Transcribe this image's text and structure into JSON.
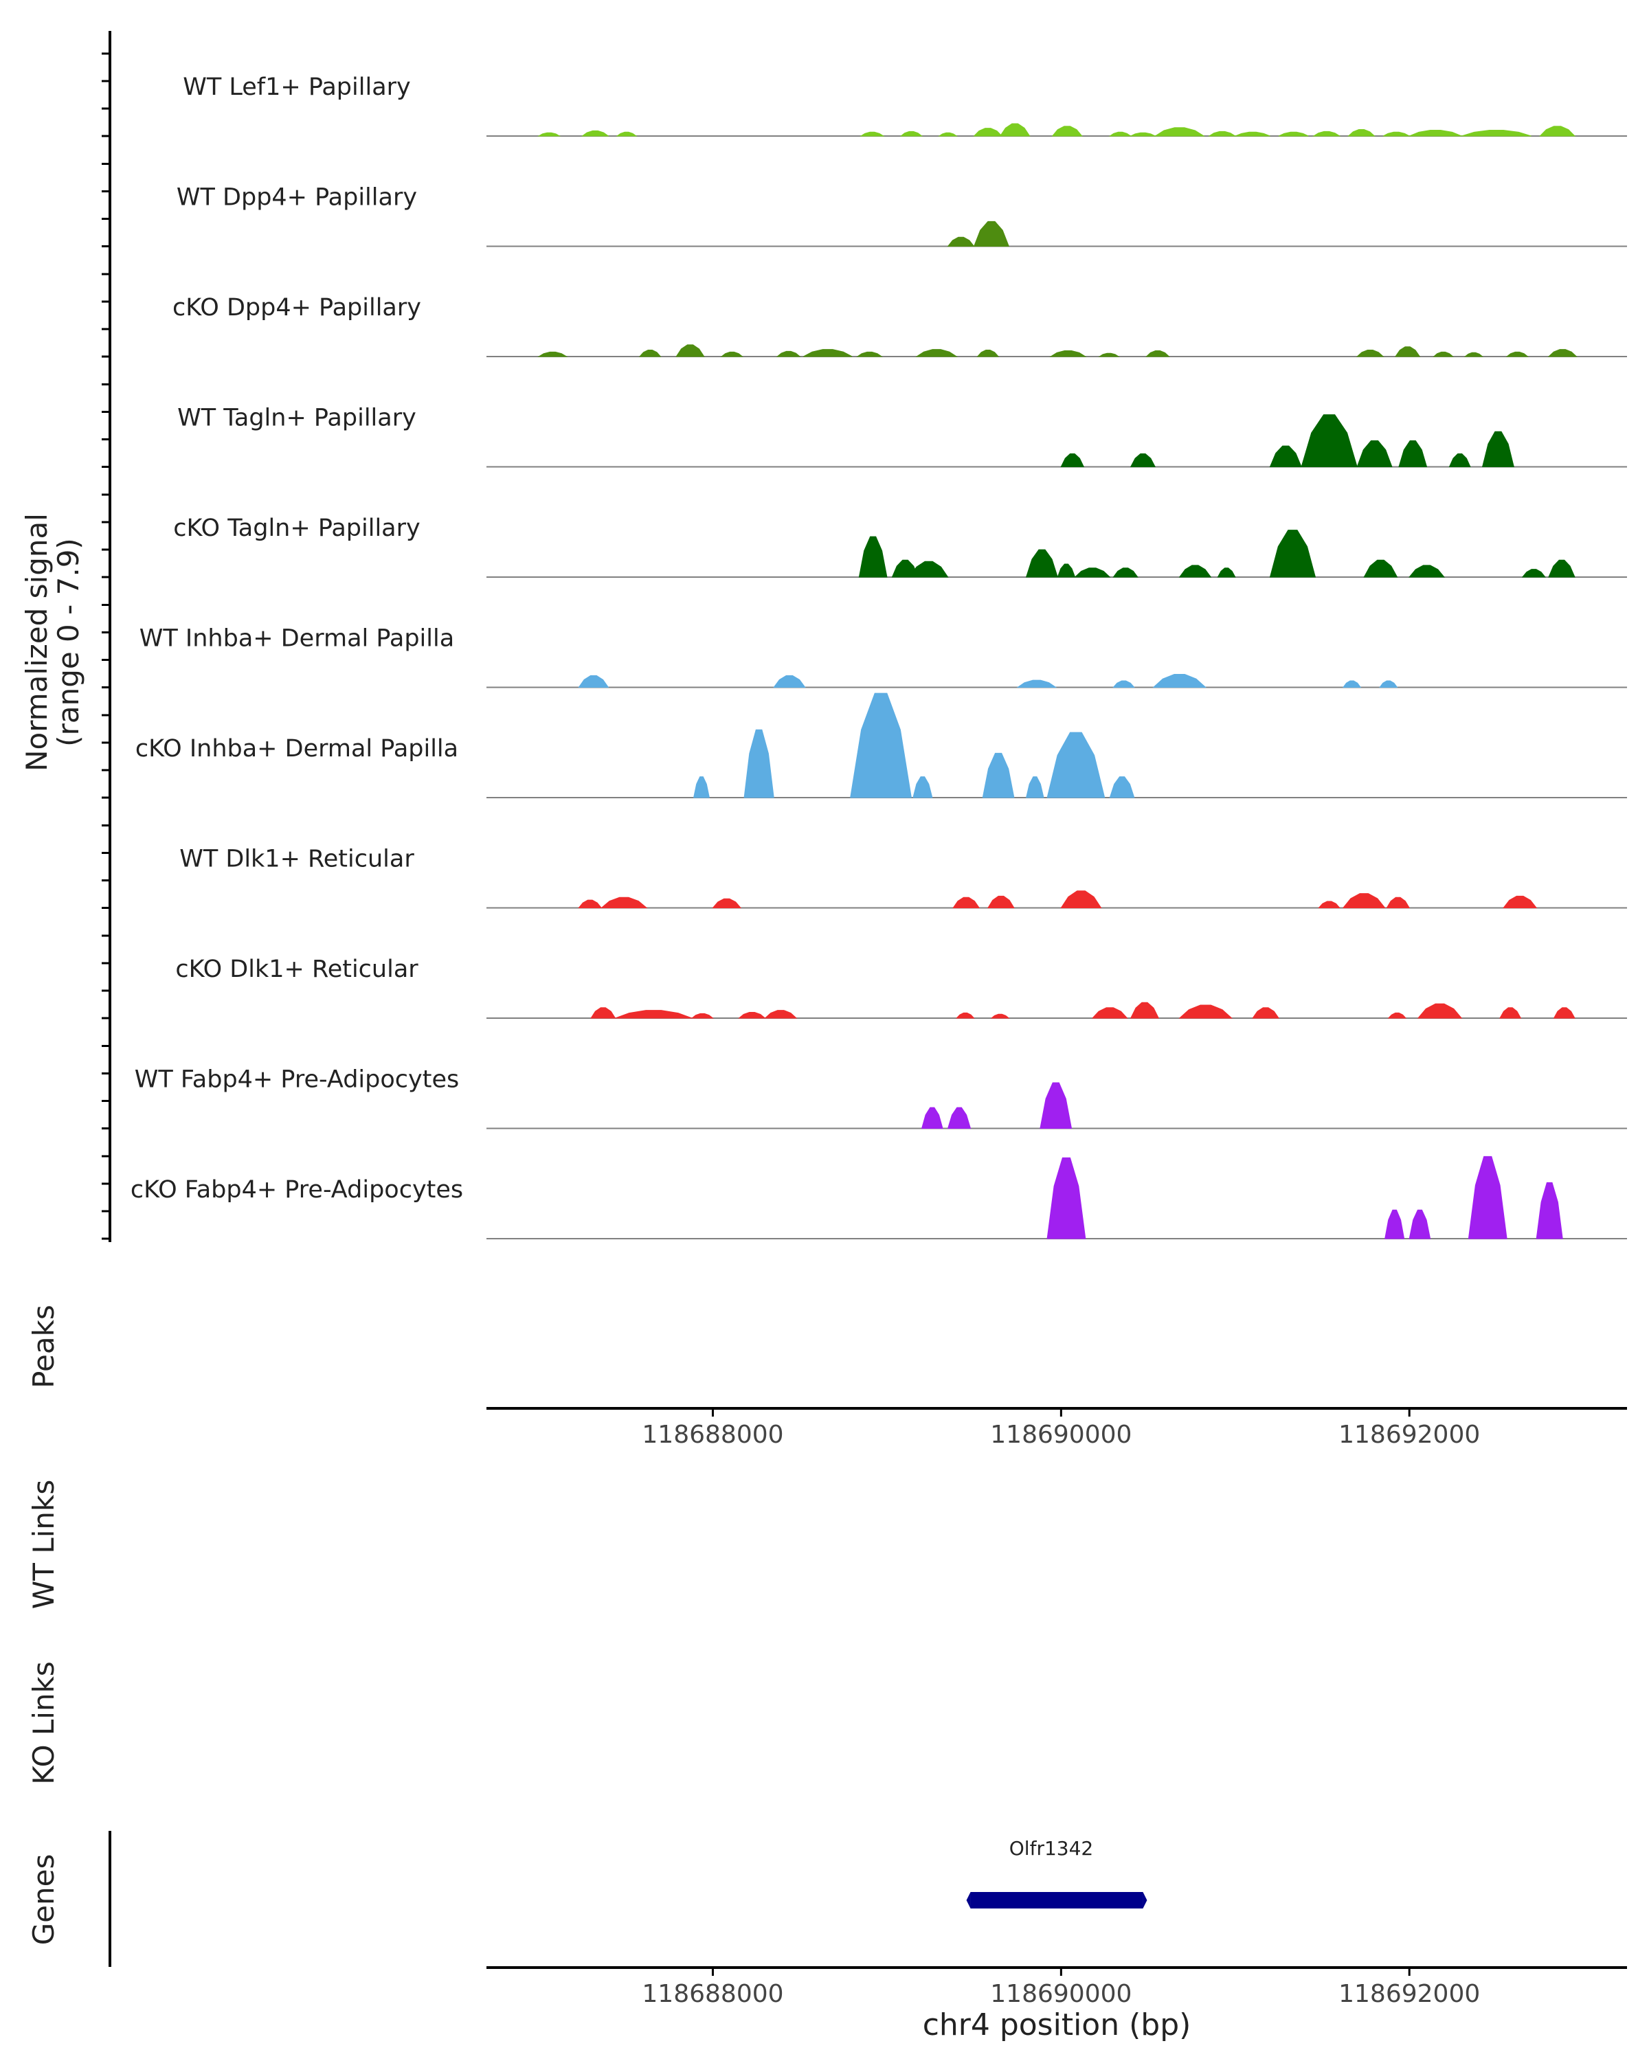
{
  "chart_data": {
    "type": "area",
    "title": "",
    "y_axis_title": "Normalized signal",
    "y_axis_subtitle": "(range 0 - 7.9)",
    "y_range": [
      0,
      7.9
    ],
    "x_axis_title": "chr4 position (bp)",
    "x_range": [
      118686700,
      118693250
    ],
    "x_ticks": [
      118688000,
      118690000,
      118692000
    ],
    "x_tick_labels": [
      "118688000",
      "118690000",
      "118692000"
    ],
    "series": [
      {
        "name": "WT Lef1+ Papillary",
        "color": "#7ccd20",
        "peaks": [
          [
            118687000,
            118687120,
            0.25
          ],
          [
            118687250,
            118687400,
            0.4
          ],
          [
            118687450,
            118687560,
            0.3
          ],
          [
            118688850,
            118688980,
            0.3
          ],
          [
            118689080,
            118689200,
            0.35
          ],
          [
            118689300,
            118689400,
            0.25
          ],
          [
            118689500,
            118689660,
            0.6
          ],
          [
            118689650,
            118689820,
            0.95
          ],
          [
            118689950,
            118690120,
            0.75
          ],
          [
            118690280,
            118690400,
            0.3
          ],
          [
            118690400,
            118690540,
            0.25
          ],
          [
            118690540,
            118690820,
            0.65
          ],
          [
            118690850,
            118691000,
            0.35
          ],
          [
            118691000,
            118691200,
            0.3
          ],
          [
            118691250,
            118691420,
            0.3
          ],
          [
            118691450,
            118691600,
            0.35
          ],
          [
            118691650,
            118691800,
            0.5
          ],
          [
            118691850,
            118692000,
            0.3
          ],
          [
            118692000,
            118692300,
            0.45
          ],
          [
            118692300,
            118692700,
            0.45
          ],
          [
            118692750,
            118692950,
            0.75
          ]
        ]
      },
      {
        "name": "WT Dpp4+ Papillary",
        "color": "#4e8c10",
        "peaks": [
          [
            118689350,
            118689500,
            0.7
          ],
          [
            118689500,
            118689700,
            1.9
          ]
        ]
      },
      {
        "name": "cKO Dpp4+ Papillary",
        "color": "#4e8c10",
        "peaks": [
          [
            118687000,
            118687160,
            0.35
          ],
          [
            118687580,
            118687700,
            0.5
          ],
          [
            118687790,
            118687950,
            0.9
          ],
          [
            118688050,
            118688170,
            0.35
          ],
          [
            118688370,
            118688500,
            0.4
          ],
          [
            118688520,
            118688800,
            0.55
          ],
          [
            118688830,
            118688970,
            0.35
          ],
          [
            118689170,
            118689400,
            0.55
          ],
          [
            118689520,
            118689640,
            0.5
          ],
          [
            118689940,
            118690140,
            0.45
          ],
          [
            118690220,
            118690330,
            0.25
          ],
          [
            118690490,
            118690620,
            0.45
          ],
          [
            118691700,
            118691850,
            0.5
          ],
          [
            118691920,
            118692060,
            0.75
          ],
          [
            118692140,
            118692250,
            0.35
          ],
          [
            118692320,
            118692420,
            0.3
          ],
          [
            118692560,
            118692680,
            0.35
          ],
          [
            118692800,
            118692960,
            0.55
          ]
        ]
      },
      {
        "name": "WT Tagln+ Papillary",
        "color": "#006400",
        "peaks": [
          [
            118690000,
            118690130,
            1.0
          ],
          [
            118690400,
            118690540,
            1.0
          ],
          [
            118691200,
            118691380,
            1.6
          ],
          [
            118691380,
            118691700,
            4.0
          ],
          [
            118691700,
            118691900,
            2.0
          ],
          [
            118691940,
            118692100,
            2.0
          ],
          [
            118692230,
            118692350,
            1.0
          ],
          [
            118692420,
            118692600,
            2.7
          ]
        ]
      },
      {
        "name": "cKO Tagln+ Papillary",
        "color": "#006400",
        "peaks": [
          [
            118688840,
            118689000,
            3.1
          ],
          [
            118689030,
            118689180,
            1.3
          ],
          [
            118689130,
            118689350,
            1.2
          ],
          [
            118689800,
            118689980,
            2.1
          ],
          [
            118689980,
            118690080,
            1.0
          ],
          [
            118690080,
            118690280,
            0.7
          ],
          [
            118690300,
            118690440,
            0.7
          ],
          [
            118690680,
            118690860,
            0.9
          ],
          [
            118690900,
            118691000,
            0.7
          ],
          [
            118691200,
            118691460,
            3.6
          ],
          [
            118691740,
            118691930,
            1.3
          ],
          [
            118692000,
            118692200,
            0.9
          ],
          [
            118692650,
            118692780,
            0.6
          ],
          [
            118692800,
            118692950,
            1.3
          ]
        ]
      },
      {
        "name": "WT Inhba+ Dermal Papilla",
        "color": "#5dade2",
        "peaks": [
          [
            118687230,
            118687400,
            0.9
          ],
          [
            118688350,
            118688530,
            0.9
          ],
          [
            118689750,
            118689970,
            0.55
          ],
          [
            118690300,
            118690420,
            0.5
          ],
          [
            118690530,
            118690830,
            1.0
          ],
          [
            118691620,
            118691720,
            0.5
          ],
          [
            118691830,
            118691930,
            0.5
          ]
        ]
      },
      {
        "name": "cKO Inhba+ Dermal Papilla",
        "color": "#5dade2",
        "peaks": [
          [
            118687890,
            118687980,
            1.6
          ],
          [
            118688180,
            118688350,
            5.2
          ],
          [
            118688790,
            118689140,
            8.0
          ],
          [
            118689150,
            118689260,
            1.6
          ],
          [
            118689550,
            118689730,
            3.4
          ],
          [
            118689800,
            118689900,
            1.6
          ],
          [
            118689920,
            118690250,
            5.0
          ],
          [
            118690280,
            118690420,
            1.6
          ]
        ]
      },
      {
        "name": "WT Dlk1+ Reticular",
        "color": "#ee2c2c",
        "peaks": [
          [
            118687230,
            118687360,
            0.6
          ],
          [
            118687360,
            118687620,
            0.8
          ],
          [
            118688000,
            118688160,
            0.7
          ],
          [
            118689380,
            118689530,
            0.8
          ],
          [
            118689580,
            118689730,
            0.9
          ],
          [
            118690000,
            118690230,
            1.3
          ],
          [
            118691480,
            118691600,
            0.5
          ],
          [
            118691620,
            118691860,
            1.1
          ],
          [
            118691870,
            118692000,
            0.8
          ],
          [
            118692540,
            118692730,
            0.9
          ]
        ]
      },
      {
        "name": "cKO Dlk1+ Reticular",
        "color": "#ee2c2c",
        "peaks": [
          [
            118687300,
            118687440,
            0.8
          ],
          [
            118687440,
            118687880,
            0.6
          ],
          [
            118687880,
            118688000,
            0.35
          ],
          [
            118688150,
            118688300,
            0.45
          ],
          [
            118688300,
            118688480,
            0.6
          ],
          [
            118689400,
            118689500,
            0.4
          ],
          [
            118689600,
            118689700,
            0.3
          ],
          [
            118690180,
            118690380,
            0.8
          ],
          [
            118690400,
            118690560,
            1.2
          ],
          [
            118690680,
            118690980,
            1.0
          ],
          [
            118691100,
            118691250,
            0.8
          ],
          [
            118691880,
            118691980,
            0.4
          ],
          [
            118692050,
            118692300,
            1.1
          ],
          [
            118692520,
            118692640,
            0.8
          ],
          [
            118692830,
            118692950,
            0.8
          ]
        ]
      },
      {
        "name": "WT Fabp4+ Pre-Adipocytes",
        "color": "#a020f0",
        "peaks": [
          [
            118689200,
            118689320,
            1.6
          ],
          [
            118689350,
            118689480,
            1.6
          ],
          [
            118689880,
            118690060,
            3.5
          ]
        ]
      },
      {
        "name": "cKO Fabp4+ Pre-Adipocytes",
        "color": "#a020f0",
        "peaks": [
          [
            118689920,
            118690140,
            6.2
          ],
          [
            118691860,
            118691970,
            2.2
          ],
          [
            118692000,
            118692120,
            2.2
          ],
          [
            118692340,
            118692560,
            6.3
          ],
          [
            118692730,
            118692880,
            4.3
          ]
        ]
      }
    ],
    "panels": [
      "Peaks",
      "WT Links",
      "KO Links",
      "Genes"
    ],
    "genes": [
      {
        "name": "Olfr1342",
        "start": 118689480,
        "end": 118690470,
        "color": "#00008b"
      }
    ]
  }
}
